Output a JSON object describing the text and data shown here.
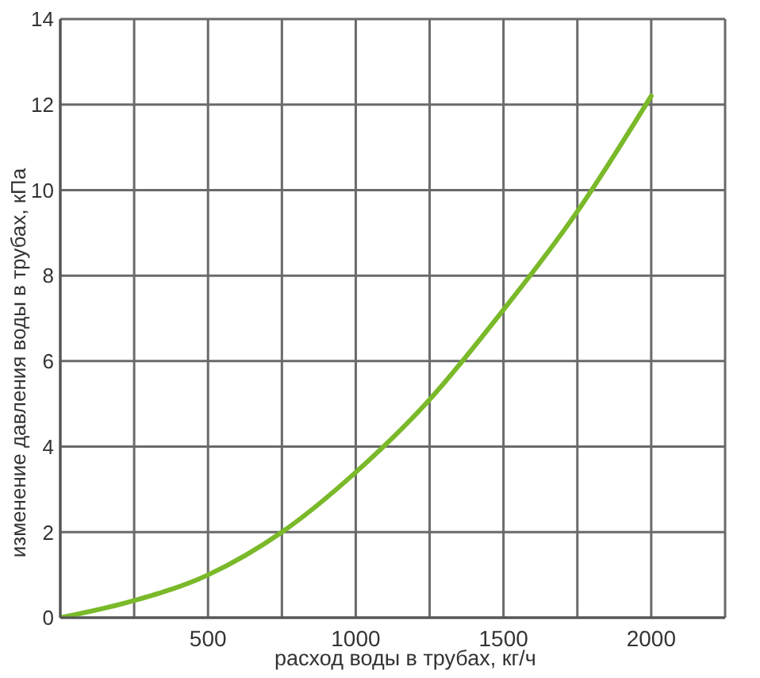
{
  "chart_data": {
    "type": "line",
    "xlabel": "расход воды в трубах, кг/ч",
    "ylabel": "изменение давления воды в трубах, кПа",
    "x": [
      0,
      250,
      500,
      750,
      1000,
      1250,
      1500,
      1750,
      2000
    ],
    "values": [
      0,
      0.4,
      1.0,
      2.0,
      3.4,
      5.1,
      7.2,
      9.5,
      12.2
    ],
    "color": "#7ab929",
    "xlim": [
      0,
      2250
    ],
    "xticks": [
      {
        "value": 250,
        "label": null
      },
      500,
      {
        "value": 750,
        "label": null
      },
      1000,
      {
        "value": 1250,
        "label": null
      },
      1500,
      {
        "value": 1750,
        "label": null
      },
      2000,
      {
        "value": 2250,
        "label": null
      }
    ],
    "ylim": [
      0,
      14
    ],
    "yticks": [
      0,
      2,
      4,
      6,
      8,
      10,
      12,
      14
    ],
    "grid": true,
    "marker": "none"
  }
}
